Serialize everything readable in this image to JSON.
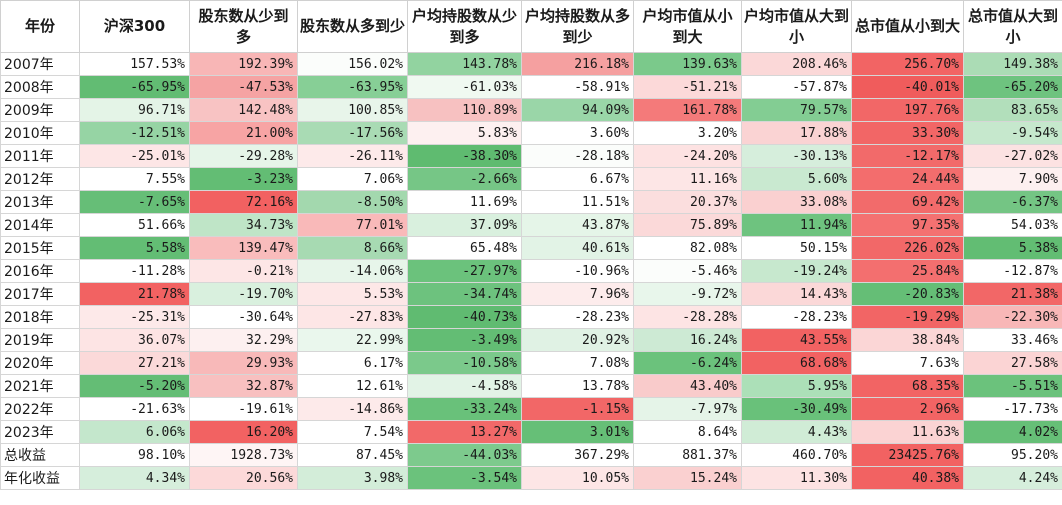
{
  "headers": [
    "年份",
    "沪深300",
    "股东数从少到多",
    "股东数从多到少",
    "户均持股数从少到多",
    "户均持股数从多到少",
    "户均市值从小到大",
    "户均市值从大到小",
    "总市值从小到大",
    "总市值从大到小"
  ],
  "rows": [
    {
      "label": "2007年",
      "values": [
        "157.53%",
        "192.39%",
        "156.02%",
        "143.78%",
        "216.18%",
        "139.63%",
        "208.46%",
        "256.70%",
        "149.38%"
      ],
      "colors": [
        "#ffffff",
        "#f8b6b6",
        "#fbfdfb",
        "#92d3a0",
        "#f5a0a0",
        "#7bc98b",
        "#fbd8d8",
        "#f26464",
        "#abdcb5"
      ]
    },
    {
      "label": "2008年",
      "values": [
        "-65.95%",
        "-47.53%",
        "-63.95%",
        "-61.03%",
        "-58.91%",
        "-51.21%",
        "-57.87%",
        "-40.01%",
        "-65.20%"
      ],
      "colors": [
        "#62bc73",
        "#f5a3a3",
        "#87cf96",
        "#f0f9f1",
        "#ffffff",
        "#fcd9d9",
        "#ffffff",
        "#f05c5c",
        "#6ec37f"
      ]
    },
    {
      "label": "2009年",
      "values": [
        "96.71%",
        "142.48%",
        "100.85%",
        "110.89%",
        "94.09%",
        "161.78%",
        "79.57%",
        "197.76%",
        "83.65%"
      ],
      "colors": [
        "#e4f4e7",
        "#f8c3c3",
        "#e8f5ea",
        "#f7c1c1",
        "#9ad6a8",
        "#f47a7a",
        "#83cd93",
        "#f26767",
        "#b2dfbb"
      ]
    },
    {
      "label": "2010年",
      "values": [
        "-12.51%",
        "21.00%",
        "-17.56%",
        "5.83%",
        "3.60%",
        "3.20%",
        "17.88%",
        "33.30%",
        "-9.54%"
      ],
      "colors": [
        "#96d4a4",
        "#f7a4a4",
        "#a9dbb4",
        "#fdf0f0",
        "#ffffff",
        "#ffffff",
        "#fad3d3",
        "#f26666",
        "#c6e8cd"
      ]
    },
    {
      "label": "2011年",
      "values": [
        "-25.01%",
        "-29.28%",
        "-26.11%",
        "-38.30%",
        "-28.18%",
        "-24.20%",
        "-30.13%",
        "-12.17%",
        "-27.02%"
      ],
      "colors": [
        "#fde6e6",
        "#e6f5e9",
        "#fdeaea",
        "#5fbb70",
        "#fbfdfb",
        "#fde2e2",
        "#d6eedc",
        "#f26a6a",
        "#fce2e2"
      ]
    },
    {
      "label": "2012年",
      "values": [
        "7.55%",
        "-3.23%",
        "7.06%",
        "-2.66%",
        "6.67%",
        "11.16%",
        "5.60%",
        "24.44%",
        "7.90%"
      ],
      "colors": [
        "#ffffff",
        "#63bd74",
        "#ffffff",
        "#76c686",
        "#ffffff",
        "#fde6e6",
        "#c9e9d0",
        "#f36d6d",
        "#fdf0f0"
      ]
    },
    {
      "label": "2013年",
      "values": [
        "-7.65%",
        "72.16%",
        "-8.50%",
        "11.69%",
        "11.51%",
        "20.37%",
        "33.08%",
        "69.42%",
        "-6.37%"
      ],
      "colors": [
        "#66be77",
        "#f26161",
        "#a3d8ae",
        "#ffffff",
        "#ffffff",
        "#fbdede",
        "#fad0d0",
        "#f26b6b",
        "#74c584"
      ]
    },
    {
      "label": "2014年",
      "values": [
        "51.66%",
        "34.73%",
        "77.01%",
        "37.09%",
        "43.87%",
        "75.89%",
        "11.94%",
        "97.35%",
        "54.03%"
      ],
      "colors": [
        "#ffffff",
        "#bfe5c7",
        "#f9b9b9",
        "#d9f0de",
        "#e5f5e8",
        "#fbd9d9",
        "#6ec37f",
        "#f47171",
        "#ffffff"
      ]
    },
    {
      "label": "2015年",
      "values": [
        "5.58%",
        "139.47%",
        "8.66%",
        "65.48%",
        "40.61%",
        "82.08%",
        "50.15%",
        "226.02%",
        "5.38%"
      ],
      "colors": [
        "#63bd74",
        "#f9bcbc",
        "#a7dab2",
        "#ffffff",
        "#e2f3e6",
        "#ffffff",
        "#ffffff",
        "#f26868",
        "#62bd73"
      ]
    },
    {
      "label": "2016年",
      "values": [
        "-11.28%",
        "-0.21%",
        "-14.06%",
        "-27.97%",
        "-10.96%",
        "-5.46%",
        "-19.24%",
        "25.84%",
        "-12.87%"
      ],
      "colors": [
        "#ffffff",
        "#fde6e6",
        "#e7f5ea",
        "#6bc27c",
        "#ffffff",
        "#fbfdfb",
        "#c7e8ce",
        "#f36f6f",
        "#ffffff"
      ]
    },
    {
      "label": "2017年",
      "values": [
        "21.78%",
        "-19.70%",
        "5.53%",
        "-34.74%",
        "7.96%",
        "-9.72%",
        "14.43%",
        "-20.83%",
        "21.38%"
      ],
      "colors": [
        "#f26262",
        "#d9f0de",
        "#fde7e7",
        "#6dc27e",
        "#fdecec",
        "#e8f6eb",
        "#fbd8d8",
        "#65be76",
        "#f26767"
      ]
    },
    {
      "label": "2018年",
      "values": [
        "-25.31%",
        "-30.64%",
        "-27.83%",
        "-40.73%",
        "-28.23%",
        "-28.28%",
        "-28.23%",
        "-19.29%",
        "-22.30%"
      ],
      "colors": [
        "#fde9e9",
        "#ffffff",
        "#fde6e6",
        "#60bb71",
        "#ffffff",
        "#fde4e4",
        "#ffffff",
        "#f26565",
        "#f8b7b7"
      ]
    },
    {
      "label": "2019年",
      "values": [
        "36.07%",
        "32.29%",
        "22.99%",
        "-3.49%",
        "20.92%",
        "16.24%",
        "43.55%",
        "38.84%",
        "33.46%"
      ],
      "colors": [
        "#fde4e4",
        "#fdf0f0",
        "#eaf7ed",
        "#63bd74",
        "#e0f2e4",
        "#cdead4",
        "#f26262",
        "#fbd6d6",
        "#ffffff"
      ]
    },
    {
      "label": "2020年",
      "values": [
        "27.21%",
        "29.93%",
        "6.17%",
        "-10.58%",
        "7.08%",
        "-6.24%",
        "68.68%",
        "7.63%",
        "27.58%"
      ],
      "colors": [
        "#fbd9d9",
        "#f8b9b9",
        "#ffffff",
        "#7bc98b",
        "#ffffff",
        "#6bc27c",
        "#f26262",
        "#ffffff",
        "#fbd4d4"
      ]
    },
    {
      "label": "2021年",
      "values": [
        "-5.20%",
        "32.87%",
        "12.61%",
        "-4.58%",
        "13.78%",
        "43.40%",
        "5.95%",
        "68.35%",
        "-5.51%"
      ],
      "colors": [
        "#64bd75",
        "#f8c0c0",
        "#ffffff",
        "#e2f3e6",
        "#ffffff",
        "#f9cbcb",
        "#ace0b8",
        "#f26464",
        "#6bc27c"
      ]
    },
    {
      "label": "2022年",
      "values": [
        "-21.63%",
        "-19.61%",
        "-14.86%",
        "-33.24%",
        "-1.15%",
        "-7.97%",
        "-30.49%",
        "2.96%",
        "-17.73%"
      ],
      "colors": [
        "#ffffff",
        "#ffffff",
        "#fdeaea",
        "#69c17a",
        "#f26767",
        "#e5f4e8",
        "#69c17a",
        "#f26464",
        "#ffffff"
      ]
    },
    {
      "label": "2023年",
      "values": [
        "6.06%",
        "16.20%",
        "7.54%",
        "13.27%",
        "3.01%",
        "8.64%",
        "4.43%",
        "11.63%",
        "4.02%"
      ],
      "colors": [
        "#c4e7cc",
        "#f26262",
        "#ffffff",
        "#f26969",
        "#66bf77",
        "#ffffff",
        "#d0ecd6",
        "#fbd3d3",
        "#66bf77"
      ]
    },
    {
      "label": "总收益",
      "values": [
        "98.10%",
        "1928.73%",
        "87.45%",
        "-44.03%",
        "367.29%",
        "881.37%",
        "460.70%",
        "23425.76%",
        "95.20%"
      ],
      "colors": [
        "#ffffff",
        "#fef5f5",
        "#ffffff",
        "#7dca8d",
        "#ffffff",
        "#ffffff",
        "#ffffff",
        "#f26262",
        "#ffffff"
      ]
    },
    {
      "label": "年化收益",
      "values": [
        "4.34%",
        "20.56%",
        "3.98%",
        "-3.54%",
        "10.05%",
        "15.24%",
        "11.30%",
        "40.38%",
        "4.24%"
      ],
      "colors": [
        "#d6eedc",
        "#fcd9d9",
        "#d3edd9",
        "#6bc27c",
        "#fde6e6",
        "#fad0d0",
        "#fde3e3",
        "#f26262",
        "#d6eedc"
      ]
    }
  ]
}
